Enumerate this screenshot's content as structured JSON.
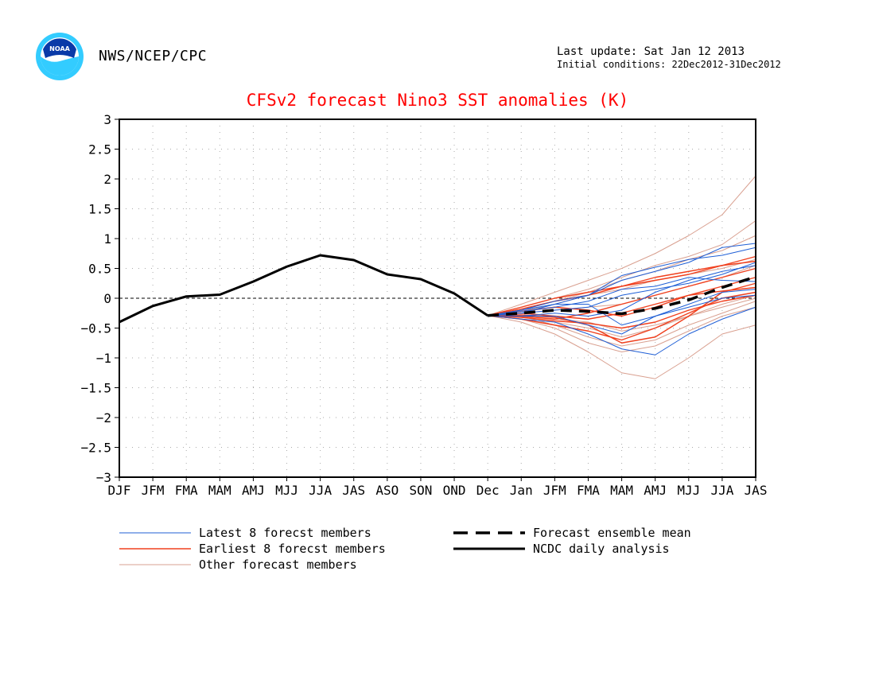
{
  "header": {
    "source": "NWS/NCEP/CPC",
    "last_update": "Last update: Sat Jan 12 2013",
    "initial_conditions": "Initial conditions: 22Dec2012-31Dec2012",
    "logo_text": "NOAA"
  },
  "chart_data": {
    "type": "line",
    "title": "CFSv2 forecast Nino3 SST anomalies (K)",
    "xlabel": "",
    "ylabel": "",
    "ylim": [
      -3,
      3
    ],
    "yticks": [
      "3",
      "2.5",
      "2",
      "1.5",
      "1",
      "0.5",
      "0",
      "−0.5",
      "−1",
      "−1.5",
      "−2",
      "−2.5",
      "−3"
    ],
    "ytick_values": [
      3,
      2.5,
      2,
      1.5,
      1,
      0.5,
      0,
      -0.5,
      -1,
      -1.5,
      -2,
      -2.5,
      -3
    ],
    "categories": [
      "DJF",
      "JFM",
      "FMA",
      "MAM",
      "AMJ",
      "MJJ",
      "JJA",
      "JAS",
      "ASO",
      "SON",
      "OND",
      "Dec",
      "Jan",
      "JFM",
      "FMA",
      "MAM",
      "AMJ",
      "MJJ",
      "JJA",
      "JAS"
    ],
    "grid": true,
    "zero_line": true,
    "colors": {
      "latest": "#1f5fd6",
      "earliest": "#f0401e",
      "other": "#d9a090",
      "mean": "#000000",
      "analysis": "#000000",
      "title": "#ff0000"
    },
    "legend": [
      {
        "label": "Latest 8 forecst members",
        "style": "latest"
      },
      {
        "label": "Earliest 8 forecst members",
        "style": "earliest"
      },
      {
        "label": "Other forecast members",
        "style": "other"
      },
      {
        "label": "Forecast ensemble mean",
        "style": "mean"
      },
      {
        "label": "NCDC daily analysis",
        "style": "analysis"
      }
    ],
    "analysis": {
      "x_start": 0,
      "values": [
        -0.4,
        -0.13,
        0.03,
        0.06,
        0.28,
        0.53,
        0.72,
        0.64,
        0.4,
        0.32,
        0.08,
        -0.29
      ]
    },
    "ensemble_mean": {
      "x_start": 11,
      "values": [
        -0.29,
        -0.25,
        -0.2,
        -0.22,
        -0.26,
        -0.17,
        -0.03,
        0.18,
        0.36
      ]
    },
    "latest_members": [
      {
        "x_start": 11,
        "values": [
          -0.29,
          -0.2,
          -0.05,
          0.05,
          0.3,
          0.45,
          0.6,
          0.85,
          0.92
        ]
      },
      {
        "x_start": 11,
        "values": [
          -0.29,
          -0.25,
          -0.1,
          0.05,
          0.38,
          0.52,
          0.65,
          0.72,
          0.85
        ]
      },
      {
        "x_start": 11,
        "values": [
          -0.29,
          -0.3,
          -0.25,
          -0.3,
          -0.2,
          0.1,
          0.3,
          0.45,
          0.55
        ]
      },
      {
        "x_start": 11,
        "values": [
          -0.29,
          -0.22,
          -0.15,
          -0.05,
          0.15,
          0.2,
          0.35,
          0.3,
          0.28
        ]
      },
      {
        "x_start": 11,
        "values": [
          -0.29,
          -0.3,
          -0.3,
          -0.45,
          -0.6,
          -0.3,
          -0.1,
          0.1,
          0.15
        ]
      },
      {
        "x_start": 11,
        "values": [
          -0.29,
          -0.35,
          -0.4,
          -0.6,
          -0.85,
          -0.95,
          -0.6,
          -0.35,
          -0.15
        ]
      },
      {
        "x_start": 11,
        "values": [
          -0.29,
          -0.2,
          -0.1,
          -0.1,
          -0.45,
          -0.3,
          -0.15,
          0.0,
          0.05
        ]
      },
      {
        "x_start": 11,
        "values": [
          -0.29,
          -0.25,
          -0.2,
          -0.15,
          0.05,
          0.15,
          0.25,
          0.4,
          0.6
        ]
      }
    ],
    "earliest_members": [
      {
        "x_start": 11,
        "values": [
          -0.29,
          -0.28,
          -0.32,
          -0.45,
          -0.75,
          -0.65,
          -0.3,
          0.1,
          0.25
        ]
      },
      {
        "x_start": 11,
        "values": [
          -0.29,
          -0.18,
          -0.05,
          0.05,
          0.2,
          0.3,
          0.4,
          0.55,
          0.7
        ]
      },
      {
        "x_start": 11,
        "values": [
          -0.29,
          -0.35,
          -0.45,
          -0.55,
          -0.7,
          -0.5,
          -0.25,
          0.0,
          0.1
        ]
      },
      {
        "x_start": 11,
        "values": [
          -0.29,
          -0.22,
          -0.15,
          -0.2,
          -0.3,
          -0.15,
          0.05,
          0.2,
          0.35
        ]
      },
      {
        "x_start": 11,
        "values": [
          -0.29,
          -0.3,
          -0.35,
          -0.25,
          -0.1,
          0.05,
          0.2,
          0.35,
          0.5
        ]
      },
      {
        "x_start": 11,
        "values": [
          -0.29,
          -0.15,
          0.0,
          0.1,
          0.2,
          0.35,
          0.45,
          0.55,
          0.62
        ]
      },
      {
        "x_start": 11,
        "values": [
          -0.29,
          -0.32,
          -0.38,
          -0.42,
          -0.5,
          -0.4,
          -0.2,
          -0.05,
          0.05
        ]
      },
      {
        "x_start": 11,
        "values": [
          -0.29,
          -0.25,
          -0.3,
          -0.35,
          -0.25,
          -0.1,
          0.05,
          0.12,
          0.18
        ]
      }
    ],
    "other_members": [
      {
        "x_start": 11,
        "values": [
          -0.29,
          -0.1,
          0.1,
          0.3,
          0.5,
          0.75,
          1.05,
          1.4,
          2.05
        ]
      },
      {
        "x_start": 11,
        "values": [
          -0.29,
          -0.15,
          0.0,
          0.15,
          0.35,
          0.55,
          0.7,
          0.9,
          1.3
        ]
      },
      {
        "x_start": 11,
        "values": [
          -0.29,
          -0.4,
          -0.6,
          -0.9,
          -1.25,
          -1.35,
          -1.0,
          -0.6,
          -0.45
        ]
      },
      {
        "x_start": 11,
        "values": [
          -0.29,
          -0.35,
          -0.5,
          -0.75,
          -0.9,
          -0.8,
          -0.55,
          -0.3,
          -0.15
        ]
      },
      {
        "x_start": 11,
        "values": [
          -0.29,
          -0.2,
          -0.05,
          0.1,
          0.3,
          0.45,
          0.65,
          0.8,
          1.05
        ]
      },
      {
        "x_start": 11,
        "values": [
          -0.29,
          -0.3,
          -0.35,
          -0.4,
          -0.55,
          -0.45,
          -0.3,
          -0.15,
          0.0
        ]
      },
      {
        "x_start": 11,
        "values": [
          -0.29,
          -0.25,
          -0.2,
          -0.15,
          -0.1,
          0.05,
          0.2,
          0.35,
          0.55
        ]
      },
      {
        "x_start": 11,
        "values": [
          -0.29,
          -0.3,
          -0.45,
          -0.65,
          -0.8,
          -0.7,
          -0.45,
          -0.25,
          -0.05
        ]
      },
      {
        "x_start": 11,
        "values": [
          -0.29,
          -0.22,
          -0.1,
          0.05,
          0.15,
          0.3,
          0.4,
          0.5,
          0.65
        ]
      },
      {
        "x_start": 11,
        "values": [
          -0.29,
          -0.35,
          -0.4,
          -0.5,
          -0.65,
          -0.5,
          -0.3,
          -0.1,
          0.05
        ]
      }
    ]
  }
}
